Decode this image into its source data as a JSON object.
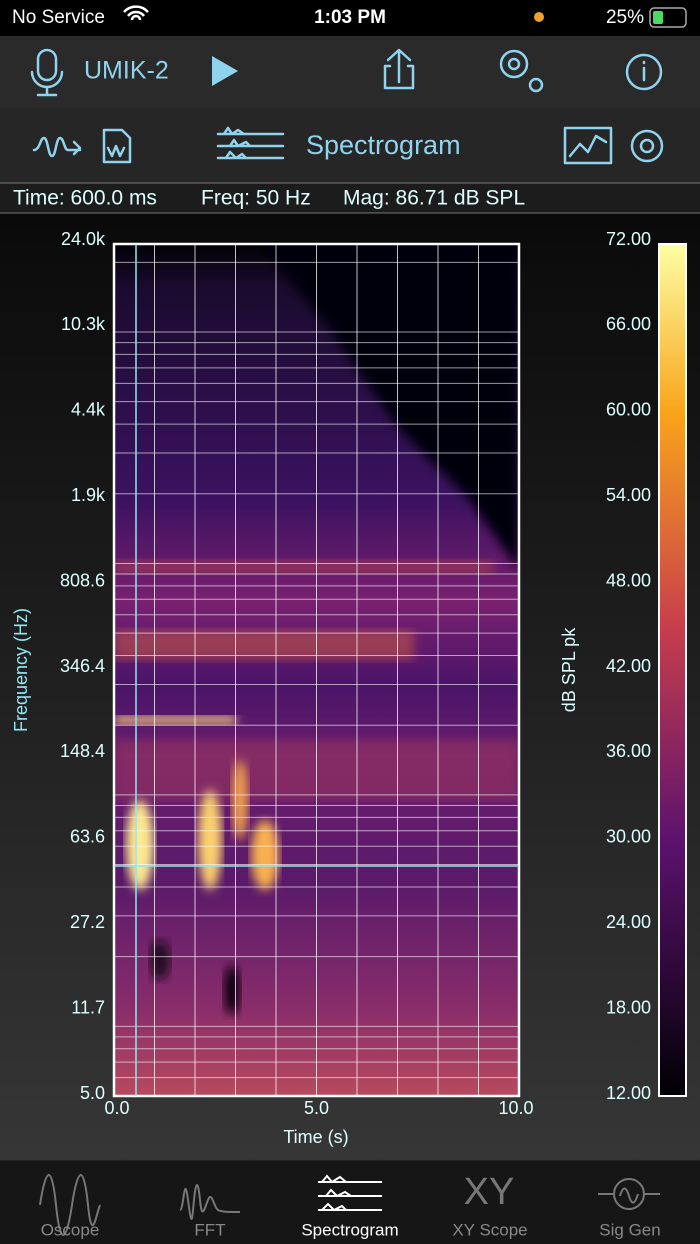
{
  "status_bar": {
    "carrier": "No Service",
    "time": "1:03 PM",
    "battery": "25%"
  },
  "toolbar": {
    "device": "UMIK-2"
  },
  "mode_bar": {
    "title": "Spectrogram"
  },
  "readout": {
    "time": "Time: 600.0 ms",
    "freq": "Freq: 50 Hz",
    "mag": "Mag: 86.71 dB SPL"
  },
  "plot": {
    "y_label": "Frequency (Hz)",
    "y_ticks": [
      "24.0k",
      "10.3k",
      "4.4k",
      "1.9k",
      "808.6",
      "346.4",
      "148.4",
      "63.6",
      "27.2",
      "11.7",
      "5.0"
    ],
    "x_label": "Time (s)",
    "x_ticks": [
      "0.0",
      "5.0",
      "10.0"
    ],
    "colorbar_label": "dB SPL pk",
    "colorbar_ticks": [
      "72.00",
      "66.00",
      "60.00",
      "54.00",
      "48.00",
      "42.00",
      "36.00",
      "30.00",
      "24.00",
      "18.00",
      "12.00"
    ]
  },
  "tabs": {
    "xy_icon": "XY",
    "items": [
      "Oscope",
      "FFT",
      "Spectrogram",
      "XY Scope",
      "Sig Gen"
    ]
  }
}
